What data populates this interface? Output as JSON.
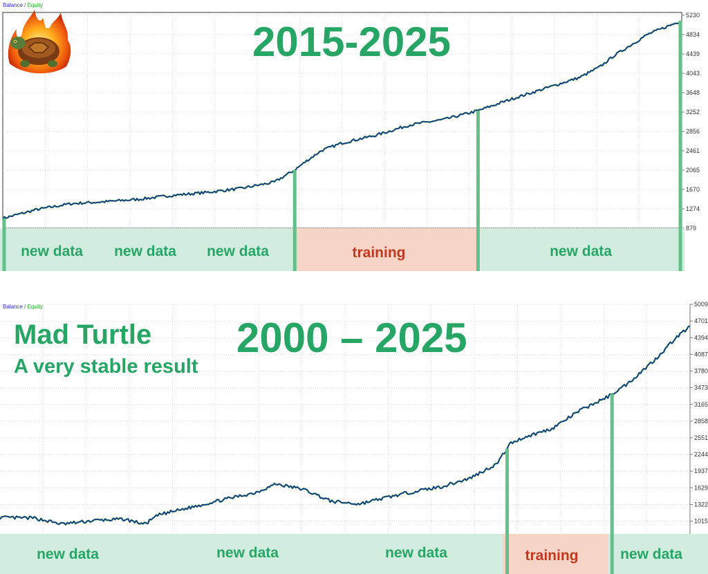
{
  "colors": {
    "accent_green": "#27a565",
    "balance_line": "#1b2f8c",
    "equity_line": "#2fa84a",
    "new_data_band": "#d3ece0",
    "training_band": "#f6d5c6",
    "training_text": "#c0391f",
    "marker_green": "#63c08a"
  },
  "logo": {
    "icon": "flaming-turtle-icon"
  },
  "panel1": {
    "legend": {
      "balance": "Balance",
      "separator": " / ",
      "equity": "Equity"
    },
    "title": "2015-2025",
    "segments": [
      {
        "kind": "new",
        "labels": [
          "new data",
          "new data",
          "new data"
        ]
      },
      {
        "kind": "training",
        "labels": [
          "training"
        ]
      },
      {
        "kind": "new",
        "labels": [
          "new data"
        ]
      }
    ]
  },
  "panel2": {
    "legend": {
      "balance": "Balance",
      "separator": " / ",
      "equity": "Equity"
    },
    "title": "2000 – 2025",
    "heading": "Mad Turtle",
    "subheading": "A very stable result",
    "segments": [
      {
        "kind": "new",
        "labels": [
          "new data",
          "new data",
          "new data"
        ]
      },
      {
        "kind": "training",
        "labels": [
          "training"
        ]
      },
      {
        "kind": "new",
        "labels": [
          "new data"
        ]
      }
    ]
  },
  "chart_data": [
    {
      "type": "line",
      "title": "2015-2025",
      "y_ticks": [
        "5230",
        "4834",
        "4439",
        "4043",
        "3648",
        "3252",
        "2856",
        "2461",
        "2065",
        "1670",
        "1274",
        "879"
      ],
      "ylim": [
        879,
        5230
      ],
      "xlim": [
        0,
        1
      ],
      "grid": true,
      "series": [
        {
          "name": "Balance",
          "x": [
            0,
            0.05,
            0.1,
            0.15,
            0.2,
            0.25,
            0.3,
            0.35,
            0.4,
            0.43,
            0.45,
            0.47,
            0.5,
            0.55,
            0.6,
            0.65,
            0.7,
            0.75,
            0.8,
            0.85,
            0.88,
            0.9,
            0.95,
            1.0
          ],
          "y": [
            1080,
            1260,
            1380,
            1420,
            1470,
            1550,
            1610,
            1690,
            1820,
            2070,
            2280,
            2470,
            2620,
            2780,
            2990,
            3100,
            3280,
            3520,
            3740,
            3960,
            4180,
            4400,
            4840,
            5120
          ]
        }
      ],
      "markers": [
        0,
        0.43,
        0.7,
        1.0
      ]
    },
    {
      "type": "line",
      "title": "2000 – 2025",
      "y_ticks": [
        "5009",
        "4701",
        "4394",
        "4087",
        "3780",
        "3473",
        "3165",
        "2858",
        "2551",
        "2244",
        "1937",
        "1629",
        "1322",
        "1015"
      ],
      "ylim": [
        780,
        5009
      ],
      "xlim": [
        0,
        1
      ],
      "grid": true,
      "series": [
        {
          "name": "Balance",
          "x": [
            0,
            0.05,
            0.09,
            0.14,
            0.18,
            0.21,
            0.23,
            0.27,
            0.32,
            0.37,
            0.4,
            0.44,
            0.48,
            0.52,
            0.56,
            0.6,
            0.64,
            0.68,
            0.72,
            0.74,
            0.76,
            0.8,
            0.84,
            0.88,
            0.91,
            0.95,
            0.98,
            1.0
          ],
          "y": [
            1080,
            1070,
            960,
            1030,
            1050,
            960,
            1130,
            1250,
            1400,
            1540,
            1700,
            1600,
            1380,
            1330,
            1450,
            1560,
            1650,
            1800,
            2070,
            2450,
            2560,
            2720,
            3050,
            3300,
            3550,
            4000,
            4400,
            4600
          ]
        }
      ],
      "markers": [
        0.735,
        0.887
      ]
    }
  ]
}
